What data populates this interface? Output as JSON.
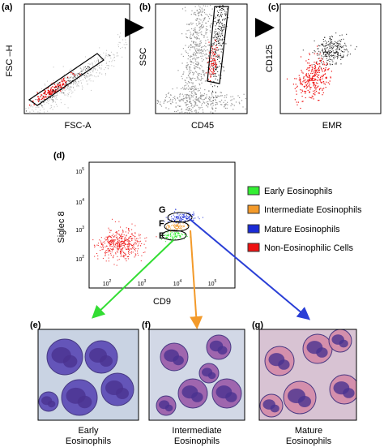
{
  "panels": [
    {
      "label": "(a)",
      "y_axis": "FSC –H",
      "x_axis": "FSC-A"
    },
    {
      "label": "(b)",
      "y_axis": "SSC",
      "x_axis": "CD45"
    },
    {
      "label": "(c)",
      "y_axis": "CD125",
      "x_axis": "EMR"
    }
  ],
  "plot_d": {
    "label": "(d)",
    "y_axis": "Siglec 8",
    "x_axis": "CD9",
    "y_ticks": [
      {
        "base": "10",
        "exponent": "5"
      },
      {
        "base": "10",
        "exponent": "4"
      },
      {
        "base": "10",
        "exponent": "3"
      },
      {
        "base": "10",
        "exponent": "2"
      }
    ],
    "x_ticks": [
      {
        "base": "10",
        "exponent": "2"
      },
      {
        "base": "10",
        "exponent": "3"
      },
      {
        "base": "10",
        "exponent": "4"
      },
      {
        "base": "10",
        "exponent": "5"
      }
    ],
    "gates": [
      "G",
      "F",
      "E"
    ]
  },
  "legend": [
    "Early Eosinophils",
    "Intermediate Eosinophils",
    "Mature Eosinophils",
    "Non-Eosinophilic Cells"
  ],
  "micrographs": [
    {
      "label": "(e)",
      "caption": [
        "Early",
        "Eosinophils"
      ]
    },
    {
      "label": "(f)",
      "caption": [
        "Intermediate",
        "Eosinophils"
      ]
    },
    {
      "label": "(g)",
      "caption": [
        "Mature",
        "Eosinophils"
      ]
    }
  ]
}
